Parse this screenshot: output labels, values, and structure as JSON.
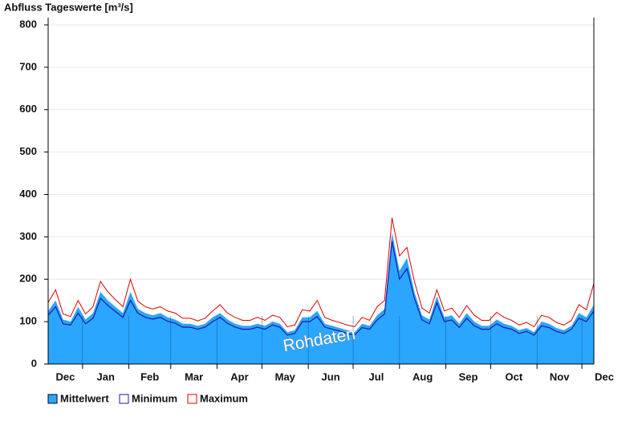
{
  "chart_data": {
    "type": "area-minmax",
    "title": "Abfluss Tageswerte [m³/s]",
    "watermark": "Rohdaten",
    "x": [
      -23,
      -18,
      -13,
      -8,
      -3,
      2,
      7,
      12,
      17,
      22,
      27,
      32,
      37,
      42,
      47,
      52,
      57,
      62,
      67,
      72,
      77,
      82,
      87,
      92,
      97,
      102,
      107,
      112,
      117,
      122,
      127,
      132,
      137,
      142,
      147,
      152,
      157,
      162,
      167,
      172,
      177,
      182,
      187,
      192,
      197,
      202,
      207,
      212,
      217,
      222,
      227,
      232,
      237,
      242,
      247,
      252,
      257,
      262,
      267,
      272,
      277,
      282,
      287,
      292,
      297,
      302,
      307,
      312,
      317,
      322,
      327,
      332,
      337,
      342
    ],
    "series": [
      {
        "name": "Mittelwert",
        "color": "#2aa6ff",
        "values": [
          125,
          150,
          105,
          100,
          135,
          105,
          120,
          170,
          150,
          135,
          120,
          170,
          130,
          120,
          115,
          120,
          110,
          105,
          95,
          95,
          90,
          95,
          110,
          120,
          105,
          95,
          90,
          90,
          95,
          90,
          100,
          95,
          75,
          80,
          110,
          110,
          125,
          95,
          90,
          85,
          80,
          75,
          95,
          90,
          115,
          130,
          310,
          220,
          250,
          170,
          115,
          105,
          160,
          110,
          115,
          95,
          120,
          100,
          90,
          90,
          105,
          95,
          90,
          80,
          85,
          75,
          100,
          95,
          85,
          80,
          90,
          120,
          110,
          140
        ]
      },
      {
        "name": "Minimum",
        "color": "#1a1aa8",
        "values": [
          115,
          135,
          95,
          92,
          120,
          95,
          108,
          155,
          138,
          124,
          110,
          150,
          120,
          110,
          106,
          110,
          101,
          96,
          87,
          87,
          82,
          87,
          100,
          110,
          96,
          87,
          82,
          82,
          87,
          82,
          92,
          87,
          68,
          72,
          100,
          100,
          112,
          87,
          82,
          78,
          72,
          68,
          86,
          82,
          104,
          118,
          290,
          200,
          225,
          155,
          104,
          95,
          145,
          100,
          104,
          86,
          108,
          90,
          82,
          82,
          95,
          86,
          82,
          72,
          77,
          68,
          90,
          86,
          77,
          72,
          82,
          108,
          100,
          125
        ]
      },
      {
        "name": "Maximum",
        "color": "#dd0000",
        "values": [
          145,
          175,
          118,
          112,
          150,
          118,
          135,
          195,
          170,
          152,
          135,
          200,
          148,
          135,
          130,
          135,
          125,
          120,
          108,
          108,
          102,
          108,
          125,
          140,
          120,
          110,
          103,
          103,
          110,
          103,
          115,
          110,
          88,
          92,
          128,
          125,
          150,
          110,
          103,
          98,
          92,
          88,
          110,
          103,
          135,
          150,
          345,
          255,
          275,
          195,
          132,
          120,
          175,
          125,
          132,
          110,
          138,
          115,
          103,
          103,
          122,
          110,
          103,
          92,
          98,
          88,
          115,
          110,
          98,
          92,
          103,
          140,
          128,
          190
        ]
      }
    ],
    "xlim": [
      -23,
      342
    ],
    "xticks": [
      {
        "value": -31,
        "label": "Dec"
      },
      {
        "value": 0,
        "label": "Jan"
      },
      {
        "value": 31,
        "label": "Feb"
      },
      {
        "value": 59,
        "label": "Mar"
      },
      {
        "value": 90,
        "label": "Apr"
      },
      {
        "value": 120,
        "label": "May"
      },
      {
        "value": 151,
        "label": "Jun"
      },
      {
        "value": 181,
        "label": "Jul"
      },
      {
        "value": 212,
        "label": "Aug"
      },
      {
        "value": 243,
        "label": "Sep"
      },
      {
        "value": 273,
        "label": "Oct"
      },
      {
        "value": 304,
        "label": "Nov"
      },
      {
        "value": 334,
        "label": "Dec"
      }
    ],
    "ylim": [
      0,
      817
    ],
    "yticks": [
      0,
      100,
      200,
      300,
      400,
      500,
      600,
      700,
      800
    ],
    "grid": true
  }
}
